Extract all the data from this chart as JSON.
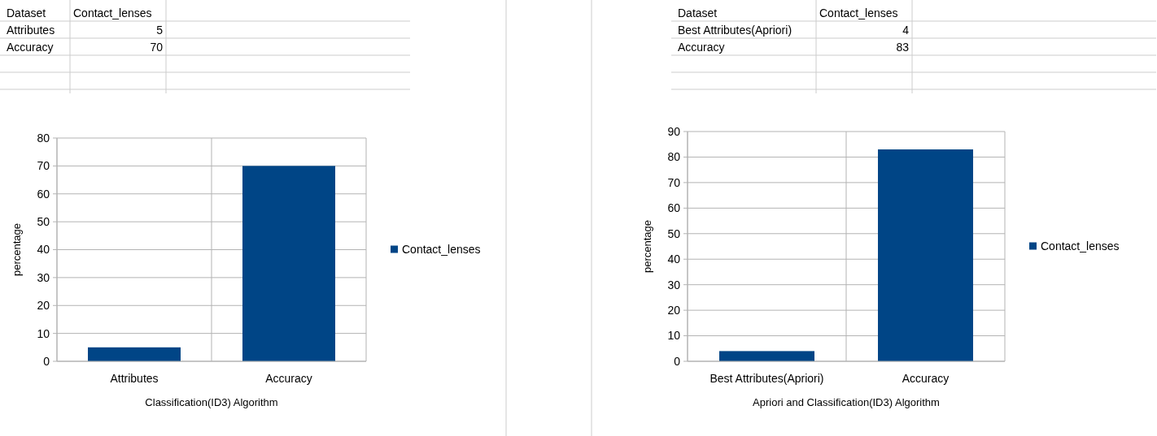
{
  "chart_data": [
    {
      "type": "other",
      "categories": [
        "Attributes",
        "Accuracy"
      ],
      "values": [
        5,
        70
      ],
      "data_labels": true,
      "annotations": [
        "Dataset",
        "Contact_lenses"
      ]
    },
    {
      "type": "other",
      "categories": [
        "Best Attributes(Apriori)",
        "Accuracy"
      ],
      "values": [
        4,
        83
      ],
      "data_labels": true,
      "annotations": [
        "Dataset",
        "Contact_lenses"
      ]
    },
    {
      "type": "bar",
      "categories": [
        "Attributes",
        "Accuracy"
      ],
      "series": [
        {
          "name": "Contact_lenses",
          "color": "#004586",
          "values": [
            5,
            70
          ]
        }
      ],
      "ylabel": "percentage",
      "xlabel": "Classification(ID3) Algorithm",
      "ylim": [
        0,
        80
      ],
      "yticks": [
        0,
        10,
        20,
        30,
        40,
        50,
        60,
        70,
        80
      ],
      "grid": true,
      "legend": "right"
    },
    {
      "type": "bar",
      "categories": [
        "Best Attributes(Apriori)",
        "Accuracy"
      ],
      "series": [
        {
          "name": "Contact_lenses",
          "color": "#004586",
          "values": [
            4,
            83
          ]
        }
      ],
      "ylabel": "percentage",
      "xlabel": "Apriori and Classification(ID3) Algorithm",
      "ylim": [
        0,
        90
      ],
      "yticks": [
        0,
        10,
        20,
        30,
        40,
        50,
        60,
        70,
        80,
        90
      ],
      "grid": true,
      "legend": "right"
    }
  ]
}
